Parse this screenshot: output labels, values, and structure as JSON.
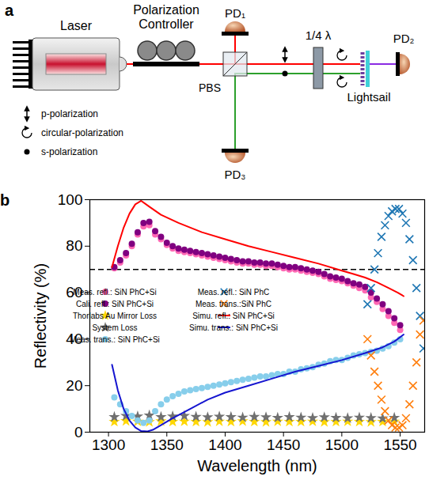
{
  "diagram": {
    "panel_label": "a",
    "laser": "Laser",
    "polarization_controller": "Polarization Controller",
    "pbs": "PBS",
    "pd1": "PD₁",
    "pd2": "PD₂",
    "pd3": "PD₃",
    "waveplate": "1/4 λ",
    "lightsail": "Lightsail",
    "key": [
      "p-polarization",
      "circular-polarization",
      "s-polarization"
    ]
  },
  "chart_data": {
    "type": "scatter",
    "panel_label": "b",
    "xlabel": "Wavelength (nm)",
    "ylabel": "Reflectivity (%)",
    "xlim": [
      1284,
      1571
    ],
    "xticks": [
      1300,
      1350,
      1400,
      1450,
      1500,
      1550
    ],
    "ylim": [
      0,
      100
    ],
    "yticks": [
      0,
      20,
      40,
      60,
      80,
      100
    ],
    "grid": false,
    "legend": "center left",
    "hlines": [
      {
        "value": 70,
        "color": "black",
        "line_style": "dashed"
      }
    ],
    "series": [
      {
        "name": "Meas. refl.: SiN PhC+Si",
        "color": "#ff69b4",
        "type": "scatter",
        "marker": "circle",
        "x": [
          1305,
          1310,
          1315,
          1320,
          1325,
          1330,
          1335,
          1340,
          1345,
          1350,
          1355,
          1360,
          1365,
          1370,
          1375,
          1380,
          1385,
          1390,
          1395,
          1400,
          1405,
          1410,
          1415,
          1420,
          1425,
          1430,
          1435,
          1440,
          1445,
          1450,
          1455,
          1460,
          1465,
          1470,
          1475,
          1480,
          1485,
          1490,
          1495,
          1500,
          1505,
          1510,
          1515,
          1520,
          1525,
          1530,
          1535,
          1540,
          1545,
          1550
        ],
        "values": [
          70.5,
          73,
          76,
          80,
          85,
          88.5,
          89,
          85,
          83,
          80.5,
          79,
          78,
          77.5,
          77,
          76.5,
          76,
          75.5,
          75,
          74.5,
          74,
          73.5,
          73,
          72.5,
          72.5,
          72,
          72,
          71.5,
          71.5,
          71,
          70.5,
          70,
          70,
          69.5,
          69,
          68.5,
          68,
          67,
          66,
          65.5,
          65,
          64,
          63,
          62,
          61,
          58,
          56,
          53,
          50,
          47,
          44
        ]
      },
      {
        "name": "Cali. refl.: SiN PhC+Si",
        "color": "#800080",
        "type": "scatter",
        "marker": "circle",
        "x": [
          1305,
          1310,
          1315,
          1320,
          1325,
          1330,
          1335,
          1340,
          1345,
          1350,
          1355,
          1360,
          1365,
          1370,
          1375,
          1380,
          1385,
          1390,
          1395,
          1400,
          1405,
          1410,
          1415,
          1420,
          1425,
          1430,
          1435,
          1440,
          1445,
          1450,
          1455,
          1460,
          1465,
          1470,
          1475,
          1480,
          1485,
          1490,
          1495,
          1500,
          1505,
          1510,
          1515,
          1520,
          1525,
          1530,
          1535,
          1540,
          1545,
          1550
        ],
        "values": [
          71,
          74,
          77,
          81,
          86,
          90,
          90.5,
          86.5,
          84,
          81.5,
          80,
          79,
          78.5,
          78,
          77.5,
          77,
          76.5,
          76,
          75.5,
          75,
          74.5,
          74,
          73.5,
          73.5,
          73,
          73,
          72.5,
          72.5,
          72,
          71.5,
          71,
          71,
          70.5,
          70,
          69.5,
          69,
          68,
          67,
          66.5,
          66,
          65,
          64,
          63.5,
          62.5,
          60,
          57.5,
          55,
          52,
          49,
          46
        ]
      },
      {
        "name": "Thorlabs Au Mirror Loss",
        "color": "#ffd700",
        "type": "scatter",
        "marker": "star",
        "x": [
          1305,
          1315,
          1325,
          1335,
          1345,
          1355,
          1365,
          1375,
          1385,
          1395,
          1405,
          1415,
          1425,
          1435,
          1445,
          1455,
          1465,
          1475,
          1485,
          1495,
          1505,
          1515,
          1525,
          1535,
          1545
        ],
        "values": [
          4.5,
          4.8,
          4.6,
          4.4,
          4.7,
          4.5,
          4.6,
          4.5,
          4.4,
          4.6,
          4.5,
          4.7,
          4.5,
          4.4,
          4.6,
          4.5,
          4.5,
          4.6,
          4.4,
          4.5,
          4.6,
          4.5,
          4.4,
          4.5,
          4.6
        ]
      },
      {
        "name": "System Loss",
        "color": "#707070",
        "type": "scatter",
        "marker": "star",
        "x": [
          1305,
          1315,
          1325,
          1335,
          1345,
          1355,
          1365,
          1375,
          1385,
          1395,
          1405,
          1415,
          1425,
          1435,
          1445,
          1455,
          1465,
          1475,
          1485,
          1495,
          1505,
          1515,
          1525,
          1535,
          1545
        ],
        "values": [
          6.5,
          7,
          6.8,
          7.2,
          6.5,
          6.8,
          7,
          6.6,
          6.4,
          6.7,
          6.5,
          6.3,
          6.6,
          6.4,
          6.2,
          6.5,
          6.3,
          6.1,
          6.4,
          6.2,
          6,
          6.3,
          6.1,
          5.9,
          6.2
        ]
      },
      {
        "name": "Meas. trans.: SiN PhC+Si",
        "color": "#87ceeb",
        "type": "scatter",
        "marker": "circle",
        "x": [
          1305,
          1310,
          1315,
          1320,
          1325,
          1330,
          1335,
          1340,
          1345,
          1350,
          1355,
          1360,
          1365,
          1370,
          1375,
          1380,
          1385,
          1390,
          1395,
          1400,
          1405,
          1410,
          1415,
          1420,
          1425,
          1430,
          1435,
          1440,
          1445,
          1450,
          1455,
          1460,
          1465,
          1470,
          1475,
          1480,
          1485,
          1490,
          1495,
          1500,
          1505,
          1510,
          1515,
          1520,
          1525,
          1530,
          1535,
          1540,
          1545,
          1550
        ],
        "values": [
          15,
          12,
          9,
          7,
          5,
          4,
          5,
          9,
          12,
          14,
          15.5,
          16.5,
          17.5,
          18,
          18.5,
          19,
          19.5,
          20,
          20.5,
          21,
          21.5,
          22,
          22.5,
          23,
          23.5,
          24,
          24,
          24.5,
          25,
          25,
          26,
          26,
          27,
          27.5,
          28,
          29,
          29.5,
          30.5,
          31,
          31,
          32,
          33,
          33.5,
          34,
          34.5,
          35,
          36,
          37,
          38.5,
          40
        ]
      },
      {
        "name": "Meas. refl.: SiN PhC",
        "color": "#1f77b4",
        "type": "scatter",
        "marker": "x",
        "x": [
          1522,
          1525,
          1528,
          1531,
          1534,
          1537,
          1540,
          1543,
          1546,
          1549,
          1552,
          1555,
          1558,
          1561,
          1564,
          1567,
          1570
        ],
        "values": [
          55,
          62,
          70,
          77,
          84,
          89,
          93,
          95,
          96,
          96,
          94,
          90,
          83,
          74,
          62,
          50,
          36
        ]
      },
      {
        "name": "Meas. trans.:SiN PhC",
        "color": "#ff7f0e",
        "type": "scatter",
        "marker": "x",
        "x": [
          1522,
          1525,
          1528,
          1531,
          1534,
          1537,
          1540,
          1543,
          1546,
          1549,
          1552,
          1555,
          1558,
          1561,
          1564,
          1567,
          1570
        ],
        "values": [
          40,
          33,
          26,
          20,
          14,
          9,
          5,
          3,
          2,
          2,
          3,
          6,
          12,
          20,
          30,
          42,
          48
        ]
      },
      {
        "name": "Simu. refl.: SiN PhC+Si",
        "color": "#ff0000",
        "type": "line",
        "line_style": "solid",
        "x": [
          1303,
          1308,
          1313,
          1318,
          1323,
          1328,
          1335,
          1345,
          1360,
          1380,
          1400,
          1420,
          1440,
          1460,
          1480,
          1500,
          1510,
          1520,
          1530,
          1540,
          1548,
          1553
        ],
        "values": [
          71,
          80,
          88,
          94,
          98,
          99.5,
          97,
          93.5,
          90,
          86,
          83,
          80,
          77.5,
          75,
          72.5,
          69.5,
          68,
          66.5,
          64.5,
          62,
          60,
          58.5
        ]
      },
      {
        "name": "Simu. trans.: SiN PhC+Si",
        "color": "#1515d0",
        "type": "line",
        "line_style": "solid",
        "x": [
          1303,
          1308,
          1313,
          1318,
          1323,
          1328,
          1333,
          1338,
          1345,
          1355,
          1370,
          1385,
          1400,
          1420,
          1440,
          1460,
          1480,
          1500,
          1520,
          1535,
          1545,
          1553
        ],
        "values": [
          29,
          18,
          10,
          5,
          2,
          0.5,
          0.3,
          1,
          3,
          6,
          10,
          14,
          17,
          20,
          23,
          26,
          28.5,
          31,
          34,
          36.5,
          39,
          42
        ]
      }
    ]
  }
}
